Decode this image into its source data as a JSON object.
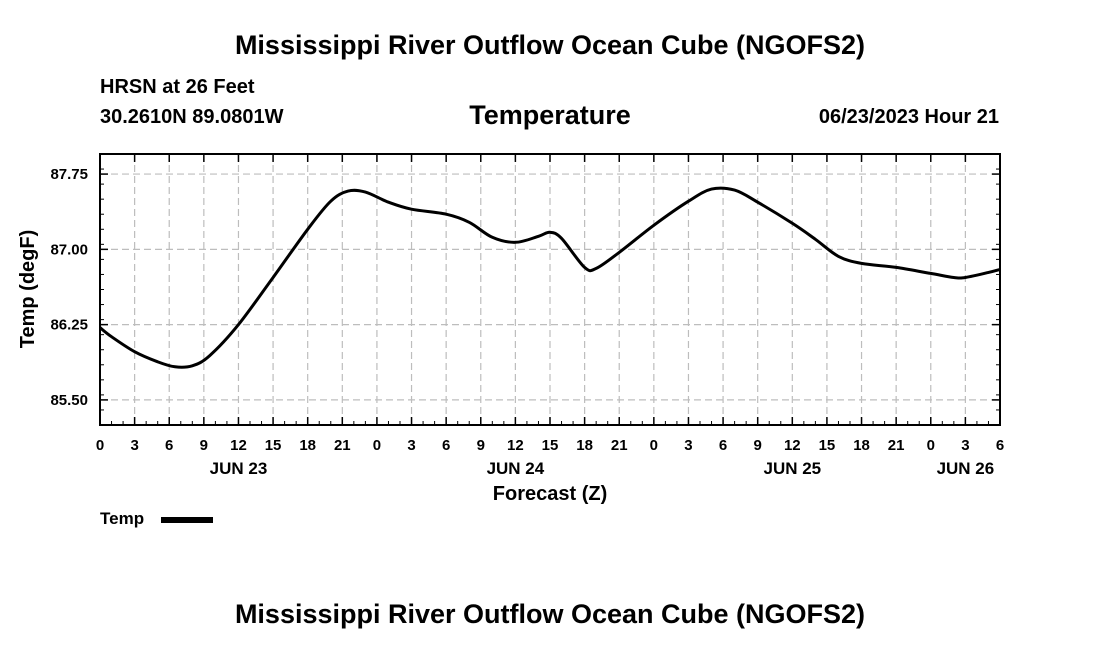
{
  "header": {
    "title": "Mississippi River Outflow Ocean Cube (NGOFS2)",
    "station": "HRSN at 26 Feet",
    "coords": "30.2610N  89.0801W",
    "variable": "Temperature",
    "datetime": "06/23/2023 Hour 21"
  },
  "footer": {
    "title": "Mississippi River Outflow Ocean Cube (NGOFS2)"
  },
  "legend": {
    "label": "Temp"
  },
  "chart_data": {
    "type": "line",
    "title": "Temperature",
    "xlabel": "Forecast (Z)",
    "ylabel": "Temp (degF)",
    "xlim": [
      0,
      78
    ],
    "ylim": [
      85.25,
      87.95
    ],
    "grid": true,
    "legend_position": "bottom-left",
    "x_ticks": [
      {
        "x": 0,
        "label": "0"
      },
      {
        "x": 3,
        "label": "3"
      },
      {
        "x": 6,
        "label": "6"
      },
      {
        "x": 9,
        "label": "9"
      },
      {
        "x": 12,
        "label": "12"
      },
      {
        "x": 15,
        "label": "15"
      },
      {
        "x": 18,
        "label": "18"
      },
      {
        "x": 21,
        "label": "21"
      },
      {
        "x": 24,
        "label": "0"
      },
      {
        "x": 27,
        "label": "3"
      },
      {
        "x": 30,
        "label": "6"
      },
      {
        "x": 33,
        "label": "9"
      },
      {
        "x": 36,
        "label": "12"
      },
      {
        "x": 39,
        "label": "15"
      },
      {
        "x": 42,
        "label": "18"
      },
      {
        "x": 45,
        "label": "21"
      },
      {
        "x": 48,
        "label": "0"
      },
      {
        "x": 51,
        "label": "3"
      },
      {
        "x": 54,
        "label": "6"
      },
      {
        "x": 57,
        "label": "9"
      },
      {
        "x": 60,
        "label": "12"
      },
      {
        "x": 63,
        "label": "15"
      },
      {
        "x": 66,
        "label": "18"
      },
      {
        "x": 69,
        "label": "21"
      },
      {
        "x": 72,
        "label": "0"
      },
      {
        "x": 75,
        "label": "3"
      },
      {
        "x": 78,
        "label": "6"
      }
    ],
    "day_labels": [
      {
        "x": 12,
        "label": "JUN 23"
      },
      {
        "x": 36,
        "label": "JUN 24"
      },
      {
        "x": 60,
        "label": "JUN 25"
      },
      {
        "x": 75,
        "label": "JUN 26"
      }
    ],
    "y_ticks": [
      {
        "value": 85.5,
        "label": "85.50"
      },
      {
        "value": 86.25,
        "label": "86.25"
      },
      {
        "value": 87.0,
        "label": "87.00"
      },
      {
        "value": 87.75,
        "label": "87.75"
      }
    ],
    "series": [
      {
        "name": "Temp",
        "x": [
          0,
          1,
          3,
          5,
          6.5,
          8,
          9.5,
          12,
          15,
          18,
          20,
          21.5,
          23,
          25,
          27,
          30,
          32,
          34,
          36,
          38,
          39,
          40,
          42,
          43,
          45,
          48,
          51,
          53,
          55,
          57,
          60,
          62,
          64,
          66,
          69,
          72,
          74,
          75,
          77,
          78
        ],
        "y": [
          86.22,
          86.13,
          85.98,
          85.88,
          85.83,
          85.84,
          85.94,
          86.25,
          86.72,
          87.2,
          87.48,
          87.58,
          87.57,
          87.47,
          87.4,
          87.35,
          87.27,
          87.12,
          87.07,
          87.13,
          87.17,
          87.11,
          86.82,
          86.81,
          86.97,
          87.24,
          87.48,
          87.6,
          87.59,
          87.47,
          87.26,
          87.1,
          86.93,
          86.86,
          86.82,
          86.76,
          86.72,
          86.72,
          86.77,
          86.8
        ]
      }
    ]
  }
}
